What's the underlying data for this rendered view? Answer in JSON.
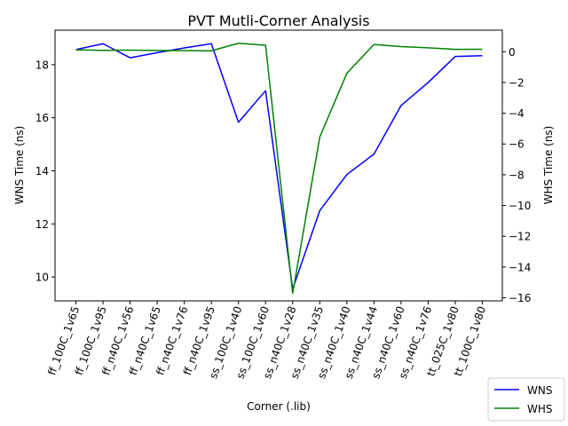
{
  "chart_data": {
    "type": "line",
    "title": "PVT Mutli-Corner Analysis",
    "xlabel": "Corner (.lib)",
    "ylabel_left": "WNS Time (ns)",
    "ylabel_right": "WHS Time (ns)",
    "categories": [
      "ff_100C_1v65",
      "ff_100C_1v95",
      "ff_n40C_1v56",
      "ff_n40C_1v65",
      "ff_n40C_1v76",
      "ff_n40C_1v95",
      "ss_100C_1v40",
      "ss_100C_1v60",
      "ss_n40C_1v28",
      "ss_n40C_1v35",
      "ss_n40C_1v40",
      "ss_n40C_1v44",
      "ss_n40C_1v60",
      "ss_n40C_1v76",
      "tt_025C_1v80",
      "tt_100C_1v80"
    ],
    "ylim_left": [
      9.1,
      19.3
    ],
    "yticks_left": [
      10,
      12,
      14,
      16,
      18
    ],
    "ylim_right": [
      -16.2,
      1.4
    ],
    "yticks_right": [
      0,
      -2,
      -4,
      -6,
      -8,
      -10,
      -12,
      -14,
      -16
    ],
    "series": [
      {
        "name": "WNS",
        "axis": "left",
        "color": "#0000ff",
        "values": [
          18.57,
          18.79,
          18.26,
          18.45,
          18.63,
          18.79,
          15.83,
          17.02,
          9.55,
          12.5,
          13.86,
          14.63,
          16.46,
          17.33,
          18.31,
          18.34
        ]
      },
      {
        "name": "WHS",
        "axis": "right",
        "color": "#008000",
        "values": [
          0.12,
          0.09,
          0.1,
          0.08,
          0.07,
          0.06,
          0.55,
          0.42,
          -15.7,
          -5.55,
          -1.4,
          0.47,
          0.33,
          0.25,
          0.15,
          0.16
        ]
      }
    ],
    "legend_position": "bottom-right",
    "grid": false
  }
}
